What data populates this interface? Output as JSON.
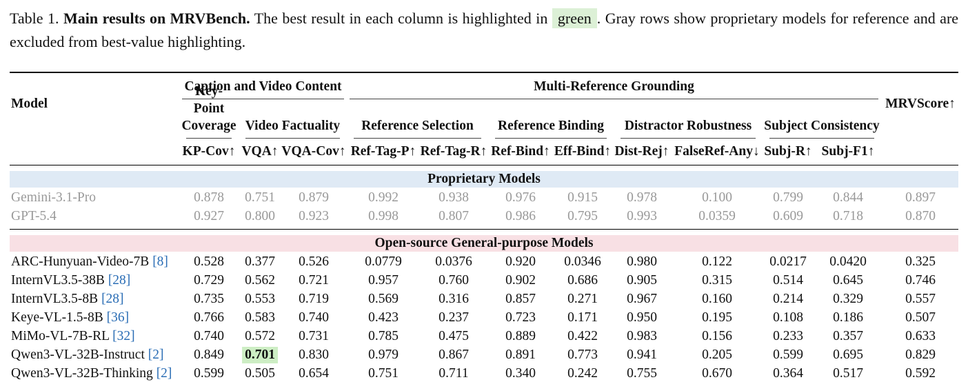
{
  "caption": {
    "label": "Table 1.",
    "bold": "Main results on MRVBench.",
    "text1": "The best result in each column is highlighted in",
    "highlight": "green",
    "text2": ". Gray rows show proprietary models for reference and are excluded from best-value highlighting."
  },
  "table": {
    "model_header": "Model",
    "final_header": "MRVScore↑",
    "groups": [
      {
        "label": "Caption and Video Content",
        "cols": [
          0,
          2
        ]
      },
      {
        "label": "Multi-Reference Grounding",
        "cols": [
          3,
          10
        ]
      }
    ],
    "subgroups": [
      {
        "label": "Key-Point Coverage",
        "cols": [
          0,
          0
        ]
      },
      {
        "label": "Video Factuality",
        "cols": [
          1,
          2
        ]
      },
      {
        "label": "Reference Selection",
        "cols": [
          3,
          4
        ]
      },
      {
        "label": "Reference Binding",
        "cols": [
          5,
          6
        ]
      },
      {
        "label": "Distractor Robustness",
        "cols": [
          7,
          8
        ]
      },
      {
        "label": "Subject Consistency",
        "cols": [
          9,
          10
        ]
      }
    ],
    "metrics": [
      "KP-Cov↑",
      "VQA↑",
      "VQA-Cov↑",
      "Ref-Tag-P↑",
      "Ref-Tag-R↑",
      "Ref-Bind↑",
      "Eff-Bind↑",
      "Dist-Rej↑",
      "FalseRef-Any↓",
      "Subj-R↑",
      "Subj-F1↑"
    ],
    "sections": [
      {
        "title": "Proprietary Models",
        "rows": [
          {
            "model": "Gemini-3.1-Pro",
            "values": [
              "0.878",
              "0.751",
              "0.879",
              "0.992",
              "0.938",
              "0.976",
              "0.915",
              "0.978",
              "0.100",
              "0.799",
              "0.844",
              "0.897"
            ]
          },
          {
            "model": "GPT-5.4",
            "values": [
              "0.927",
              "0.800",
              "0.923",
              "0.998",
              "0.807",
              "0.986",
              "0.795",
              "0.993",
              "0.0359",
              "0.609",
              "0.718",
              "0.870"
            ]
          }
        ]
      },
      {
        "title": "Open-source General-purpose Models",
        "rows": [
          {
            "model": "ARC-Hunyuan-Video-7B",
            "cite": "[8]",
            "values": [
              "0.528",
              "0.377",
              "0.526",
              "0.0779",
              "0.0376",
              "0.920",
              "0.0346",
              "0.980",
              "0.122",
              "0.0217",
              "0.0420",
              "0.325"
            ]
          },
          {
            "model": "InternVL3.5-38B",
            "cite": "[28]",
            "values": [
              "0.729",
              "0.562",
              "0.721",
              "0.957",
              "0.760",
              "0.902",
              "0.686",
              "0.905",
              "0.315",
              "0.514",
              "0.645",
              "0.746"
            ]
          },
          {
            "model": "InternVL3.5-8B",
            "cite": "[28]",
            "values": [
              "0.735",
              "0.553",
              "0.719",
              "0.569",
              "0.316",
              "0.857",
              "0.271",
              "0.967",
              "0.160",
              "0.214",
              "0.329",
              "0.557"
            ]
          },
          {
            "model": "Keye-VL-1.5-8B",
            "cite": "[36]",
            "values": [
              "0.766",
              "0.583",
              "0.740",
              "0.423",
              "0.237",
              "0.723",
              "0.171",
              "0.950",
              "0.195",
              "0.108",
              "0.186",
              "0.507"
            ]
          },
          {
            "model": "MiMo-VL-7B-RL",
            "cite": "[32]",
            "values": [
              "0.740",
              "0.572",
              "0.731",
              "0.785",
              "0.475",
              "0.889",
              "0.422",
              "0.983",
              "0.156",
              "0.233",
              "0.357",
              "0.633"
            ]
          },
          {
            "model": "Qwen3-VL-32B-Instruct",
            "cite": "[2]",
            "values": [
              "0.849",
              "0.701",
              "0.830",
              "0.979",
              "0.867",
              "0.891",
              "0.773",
              "0.941",
              "0.205",
              "0.599",
              "0.695",
              "0.829"
            ],
            "highlighted": [
              1
            ]
          },
          {
            "model": "Qwen3-VL-32B-Thinking",
            "cite": "[2]",
            "values": [
              "0.599",
              "0.505",
              "0.654",
              "0.751",
              "0.711",
              "0.340",
              "0.242",
              "0.755",
              "0.670",
              "0.364",
              "0.517",
              "0.592"
            ]
          }
        ]
      }
    ]
  }
}
